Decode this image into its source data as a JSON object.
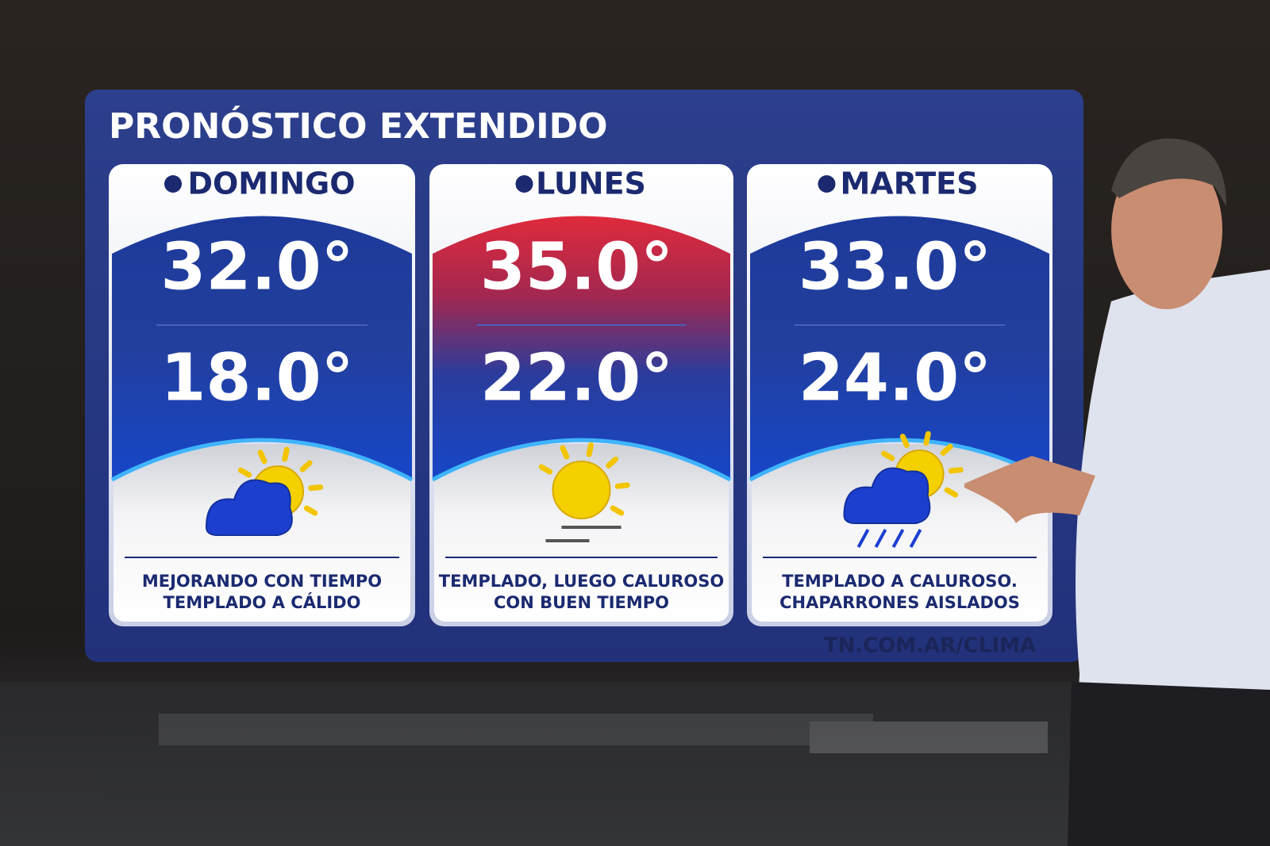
{
  "title": "PRONÓSTICO EXTENDIDO",
  "days": [
    {
      "name": "DOMINGO",
      "max": "32.0°",
      "min": "18.0°",
      "description": [
        "MEJORANDO CON TIEMPO",
        "TEMPLADO A CÁLIDO"
      ]
    },
    {
      "name": "LUNES",
      "max": "35.0°",
      "min": "22.0°",
      "description": [
        "TEMPLADO, LUEGO CALUROSO",
        "CON BUEN TIEMPO"
      ]
    },
    {
      "name": "MARTES",
      "max": "33.0°",
      "min": "24.0°",
      "description": [
        "TEMPLADO A CALUROSO.",
        "CHAPARRONES AISLADOS"
      ]
    }
  ],
  "footer": "TN.COM.AR/CLIMA"
}
